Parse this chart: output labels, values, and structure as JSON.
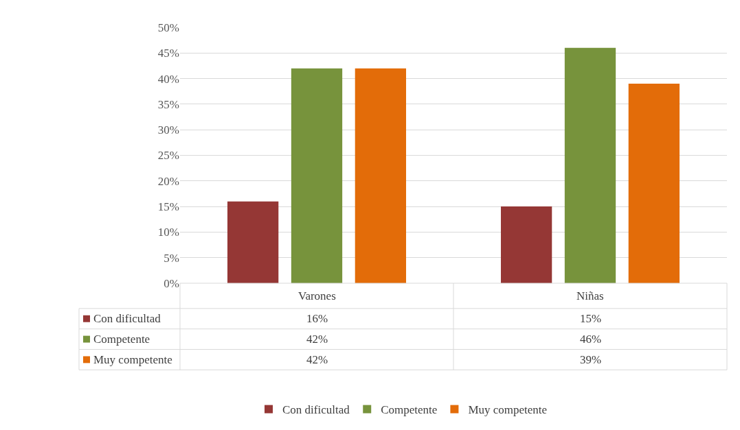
{
  "chart_data": {
    "type": "bar",
    "categories": [
      "Varones",
      "Niñas"
    ],
    "series": [
      {
        "name": "Con dificultad",
        "color": "#953735",
        "values": [
          16,
          15
        ],
        "value_labels": [
          "16%",
          "15%"
        ]
      },
      {
        "name": "Competente",
        "color": "#77933c",
        "values": [
          42,
          46
        ],
        "value_labels": [
          "42%",
          "46%"
        ]
      },
      {
        "name": "Muy competente",
        "color": "#e36c09",
        "values": [
          42,
          39
        ],
        "value_labels": [
          "42%",
          "39%"
        ]
      }
    ],
    "ylim": [
      0,
      50
    ],
    "yticks": [
      {
        "value": 0,
        "label": "0%"
      },
      {
        "value": 5,
        "label": "5%"
      },
      {
        "value": 10,
        "label": "10%"
      },
      {
        "value": 15,
        "label": "15%"
      },
      {
        "value": 20,
        "label": "20%"
      },
      {
        "value": 25,
        "label": "25%"
      },
      {
        "value": 30,
        "label": "30%"
      },
      {
        "value": 35,
        "label": "35%"
      },
      {
        "value": 40,
        "label": "40%"
      },
      {
        "value": 45,
        "label": "45%"
      },
      {
        "value": 50,
        "label": "50%"
      }
    ],
    "grid": "y",
    "legend": "bottom"
  }
}
